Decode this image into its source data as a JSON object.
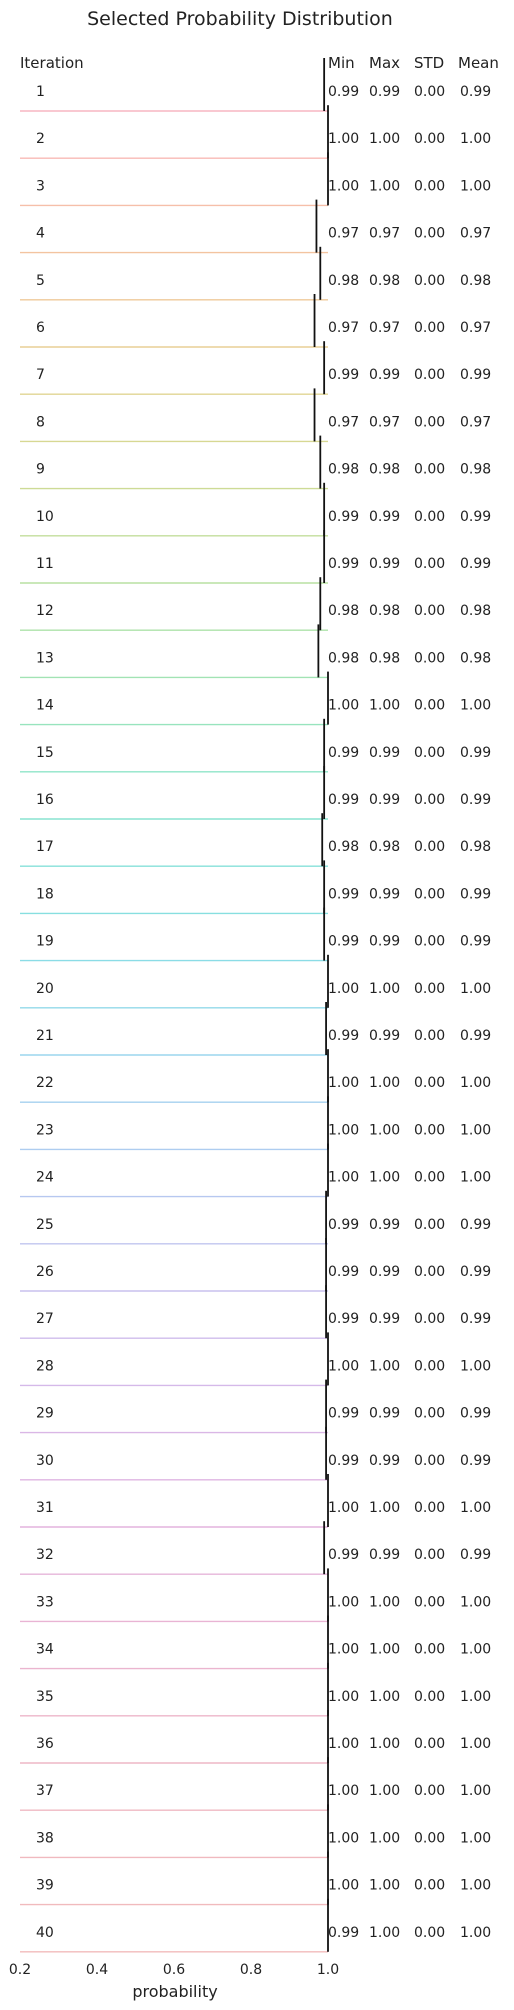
{
  "chart_data": {
    "type": "ridgeline",
    "title": "Selected Probability Distribution",
    "xlabel": "probability",
    "xlim": [
      0.2,
      1.0
    ],
    "xticks": [
      "0.2",
      "0.4",
      "0.6",
      "0.8",
      "1.0"
    ],
    "xtick_values": [
      0.2,
      0.4,
      0.6,
      0.8,
      1.0
    ],
    "columns": {
      "iteration": "Iteration",
      "min": "Min",
      "max": "Max",
      "std": "STD",
      "mean": "Mean"
    },
    "colors": [
      "#f7b6c2",
      "#f8bab5",
      "#f6bfa9",
      "#f3c4a0",
      "#efca99",
      "#e8cf95",
      "#e0d493",
      "#d7d893",
      "#cddb96",
      "#c3de9b",
      "#b8e0a2",
      "#ade2aa",
      "#a2e3b4",
      "#98e4be",
      "#8fe4c8",
      "#89e3d1",
      "#86e1d9",
      "#87dfe0",
      "#8bdce6",
      "#92d9ea",
      "#9bd5ed",
      "#a4d1ef",
      "#aecdf0",
      "#b7c8f0",
      "#c0c4ef",
      "#c8c0ee",
      "#cfbcec",
      "#d5b9e9",
      "#dab7e6",
      "#dfb5e2",
      "#e3b4de",
      "#e6b4d9",
      "#e9b4d4",
      "#ebb5cf",
      "#edb6ca",
      "#eeb7c6",
      "#efb8c2",
      "#f0b9bf",
      "#f1babd",
      "#f2bbbb"
    ],
    "rows": [
      {
        "iteration": "1",
        "min": "0.99",
        "max": "0.99",
        "std": "0.00",
        "mean": "0.99",
        "value": 0.99
      },
      {
        "iteration": "2",
        "min": "1.00",
        "max": "1.00",
        "std": "0.00",
        "mean": "1.00",
        "value": 1.0
      },
      {
        "iteration": "3",
        "min": "1.00",
        "max": "1.00",
        "std": "0.00",
        "mean": "1.00",
        "value": 1.0
      },
      {
        "iteration": "4",
        "min": "0.97",
        "max": "0.97",
        "std": "0.00",
        "mean": "0.97",
        "value": 0.97
      },
      {
        "iteration": "5",
        "min": "0.98",
        "max": "0.98",
        "std": "0.00",
        "mean": "0.98",
        "value": 0.98
      },
      {
        "iteration": "6",
        "min": "0.97",
        "max": "0.97",
        "std": "0.00",
        "mean": "0.97",
        "value": 0.965
      },
      {
        "iteration": "7",
        "min": "0.99",
        "max": "0.99",
        "std": "0.00",
        "mean": "0.99",
        "value": 0.99
      },
      {
        "iteration": "8",
        "min": "0.97",
        "max": "0.97",
        "std": "0.00",
        "mean": "0.97",
        "value": 0.965
      },
      {
        "iteration": "9",
        "min": "0.98",
        "max": "0.98",
        "std": "0.00",
        "mean": "0.98",
        "value": 0.98
      },
      {
        "iteration": "10",
        "min": "0.99",
        "max": "0.99",
        "std": "0.00",
        "mean": "0.99",
        "value": 0.99
      },
      {
        "iteration": "11",
        "min": "0.99",
        "max": "0.99",
        "std": "0.00",
        "mean": "0.99",
        "value": 0.99
      },
      {
        "iteration": "12",
        "min": "0.98",
        "max": "0.98",
        "std": "0.00",
        "mean": "0.98",
        "value": 0.98
      },
      {
        "iteration": "13",
        "min": "0.98",
        "max": "0.98",
        "std": "0.00",
        "mean": "0.98",
        "value": 0.975
      },
      {
        "iteration": "14",
        "min": "1.00",
        "max": "1.00",
        "std": "0.00",
        "mean": "1.00",
        "value": 1.0
      },
      {
        "iteration": "15",
        "min": "0.99",
        "max": "0.99",
        "std": "0.00",
        "mean": "0.99",
        "value": 0.99
      },
      {
        "iteration": "16",
        "min": "0.99",
        "max": "0.99",
        "std": "0.00",
        "mean": "0.99",
        "value": 0.99
      },
      {
        "iteration": "17",
        "min": "0.98",
        "max": "0.98",
        "std": "0.00",
        "mean": "0.98",
        "value": 0.985
      },
      {
        "iteration": "18",
        "min": "0.99",
        "max": "0.99",
        "std": "0.00",
        "mean": "0.99",
        "value": 0.99
      },
      {
        "iteration": "19",
        "min": "0.99",
        "max": "0.99",
        "std": "0.00",
        "mean": "0.99",
        "value": 0.99
      },
      {
        "iteration": "20",
        "min": "1.00",
        "max": "1.00",
        "std": "0.00",
        "mean": "1.00",
        "value": 1.0
      },
      {
        "iteration": "21",
        "min": "0.99",
        "max": "0.99",
        "std": "0.00",
        "mean": "0.99",
        "value": 0.995
      },
      {
        "iteration": "22",
        "min": "1.00",
        "max": "1.00",
        "std": "0.00",
        "mean": "1.00",
        "value": 1.0
      },
      {
        "iteration": "23",
        "min": "1.00",
        "max": "1.00",
        "std": "0.00",
        "mean": "1.00",
        "value": 1.0
      },
      {
        "iteration": "24",
        "min": "1.00",
        "max": "1.00",
        "std": "0.00",
        "mean": "1.00",
        "value": 1.0
      },
      {
        "iteration": "25",
        "min": "0.99",
        "max": "0.99",
        "std": "0.00",
        "mean": "0.99",
        "value": 0.995
      },
      {
        "iteration": "26",
        "min": "0.99",
        "max": "0.99",
        "std": "0.00",
        "mean": "0.99",
        "value": 0.995
      },
      {
        "iteration": "27",
        "min": "0.99",
        "max": "0.99",
        "std": "0.00",
        "mean": "0.99",
        "value": 0.995
      },
      {
        "iteration": "28",
        "min": "1.00",
        "max": "1.00",
        "std": "0.00",
        "mean": "1.00",
        "value": 1.0
      },
      {
        "iteration": "29",
        "min": "0.99",
        "max": "0.99",
        "std": "0.00",
        "mean": "0.99",
        "value": 0.995
      },
      {
        "iteration": "30",
        "min": "0.99",
        "max": "0.99",
        "std": "0.00",
        "mean": "0.99",
        "value": 0.995
      },
      {
        "iteration": "31",
        "min": "1.00",
        "max": "1.00",
        "std": "0.00",
        "mean": "1.00",
        "value": 1.0
      },
      {
        "iteration": "32",
        "min": "0.99",
        "max": "0.99",
        "std": "0.00",
        "mean": "0.99",
        "value": 0.99
      },
      {
        "iteration": "33",
        "min": "1.00",
        "max": "1.00",
        "std": "0.00",
        "mean": "1.00",
        "value": 1.0
      },
      {
        "iteration": "34",
        "min": "1.00",
        "max": "1.00",
        "std": "0.00",
        "mean": "1.00",
        "value": 1.0
      },
      {
        "iteration": "35",
        "min": "1.00",
        "max": "1.00",
        "std": "0.00",
        "mean": "1.00",
        "value": 1.0
      },
      {
        "iteration": "36",
        "min": "1.00",
        "max": "1.00",
        "std": "0.00",
        "mean": "1.00",
        "value": 1.0
      },
      {
        "iteration": "37",
        "min": "1.00",
        "max": "1.00",
        "std": "0.00",
        "mean": "1.00",
        "value": 1.0
      },
      {
        "iteration": "38",
        "min": "1.00",
        "max": "1.00",
        "std": "0.00",
        "mean": "1.00",
        "value": 1.0
      },
      {
        "iteration": "39",
        "min": "1.00",
        "max": "1.00",
        "std": "0.00",
        "mean": "1.00",
        "value": 1.0
      },
      {
        "iteration": "40",
        "min": "0.99",
        "max": "1.00",
        "std": "0.00",
        "mean": "1.00",
        "value": 1.0
      }
    ]
  }
}
